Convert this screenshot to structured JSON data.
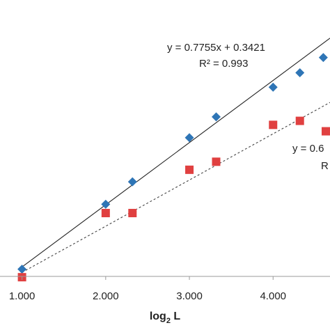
{
  "chart_data": {
    "type": "scatter",
    "title": "",
    "xlabel_main": "log",
    "xlabel_sub": "2",
    "xlabel_tail": " L",
    "ylabel": "",
    "xlim": [
      0.97,
      4.68
    ],
    "ylim": [
      1.0,
      4.1
    ],
    "grid": false,
    "x_ticks": [
      {
        "value": 1,
        "label": "1.000"
      },
      {
        "value": 2,
        "label": "2.000"
      },
      {
        "value": 3,
        "label": "3.000"
      },
      {
        "value": 4,
        "label": "4.000"
      }
    ],
    "series": [
      {
        "marker": "diamond",
        "color": "#2e75b6",
        "points": [
          {
            "x": 1.0,
            "y": 1.09
          },
          {
            "x": 2.0,
            "y": 1.9
          },
          {
            "x": 2.32,
            "y": 2.18
          },
          {
            "x": 3.0,
            "y": 2.73
          },
          {
            "x": 3.32,
            "y": 2.99
          },
          {
            "x": 4.0,
            "y": 3.36
          },
          {
            "x": 4.32,
            "y": 3.54
          },
          {
            "x": 4.6,
            "y": 3.73
          }
        ],
        "trendline": {
          "slope": 0.7755,
          "intercept": 0.3421,
          "style": "solid",
          "color": "#222222",
          "x_range": [
            1.0,
            4.68
          ]
        }
      },
      {
        "marker": "square",
        "color": "#e04040",
        "points": [
          {
            "x": 1.0,
            "y": 0.99
          },
          {
            "x": 2.0,
            "y": 1.79
          },
          {
            "x": 2.32,
            "y": 1.79
          },
          {
            "x": 3.0,
            "y": 2.33
          },
          {
            "x": 3.32,
            "y": 2.43
          },
          {
            "x": 4.0,
            "y": 2.89
          },
          {
            "x": 4.32,
            "y": 2.94
          },
          {
            "x": 4.63,
            "y": 2.81
          }
        ],
        "trendline": {
          "style": "dashed",
          "color": "#444444",
          "y_start": 1.05,
          "y_end": 3.17,
          "x_range": [
            1.0,
            4.68
          ]
        }
      }
    ],
    "annotations": {
      "eq1": "y = 0.7755x + 0.3421",
      "r2_1": "R² = 0.993",
      "eq2": "y = 0.6",
      "r2_2": "R"
    }
  }
}
